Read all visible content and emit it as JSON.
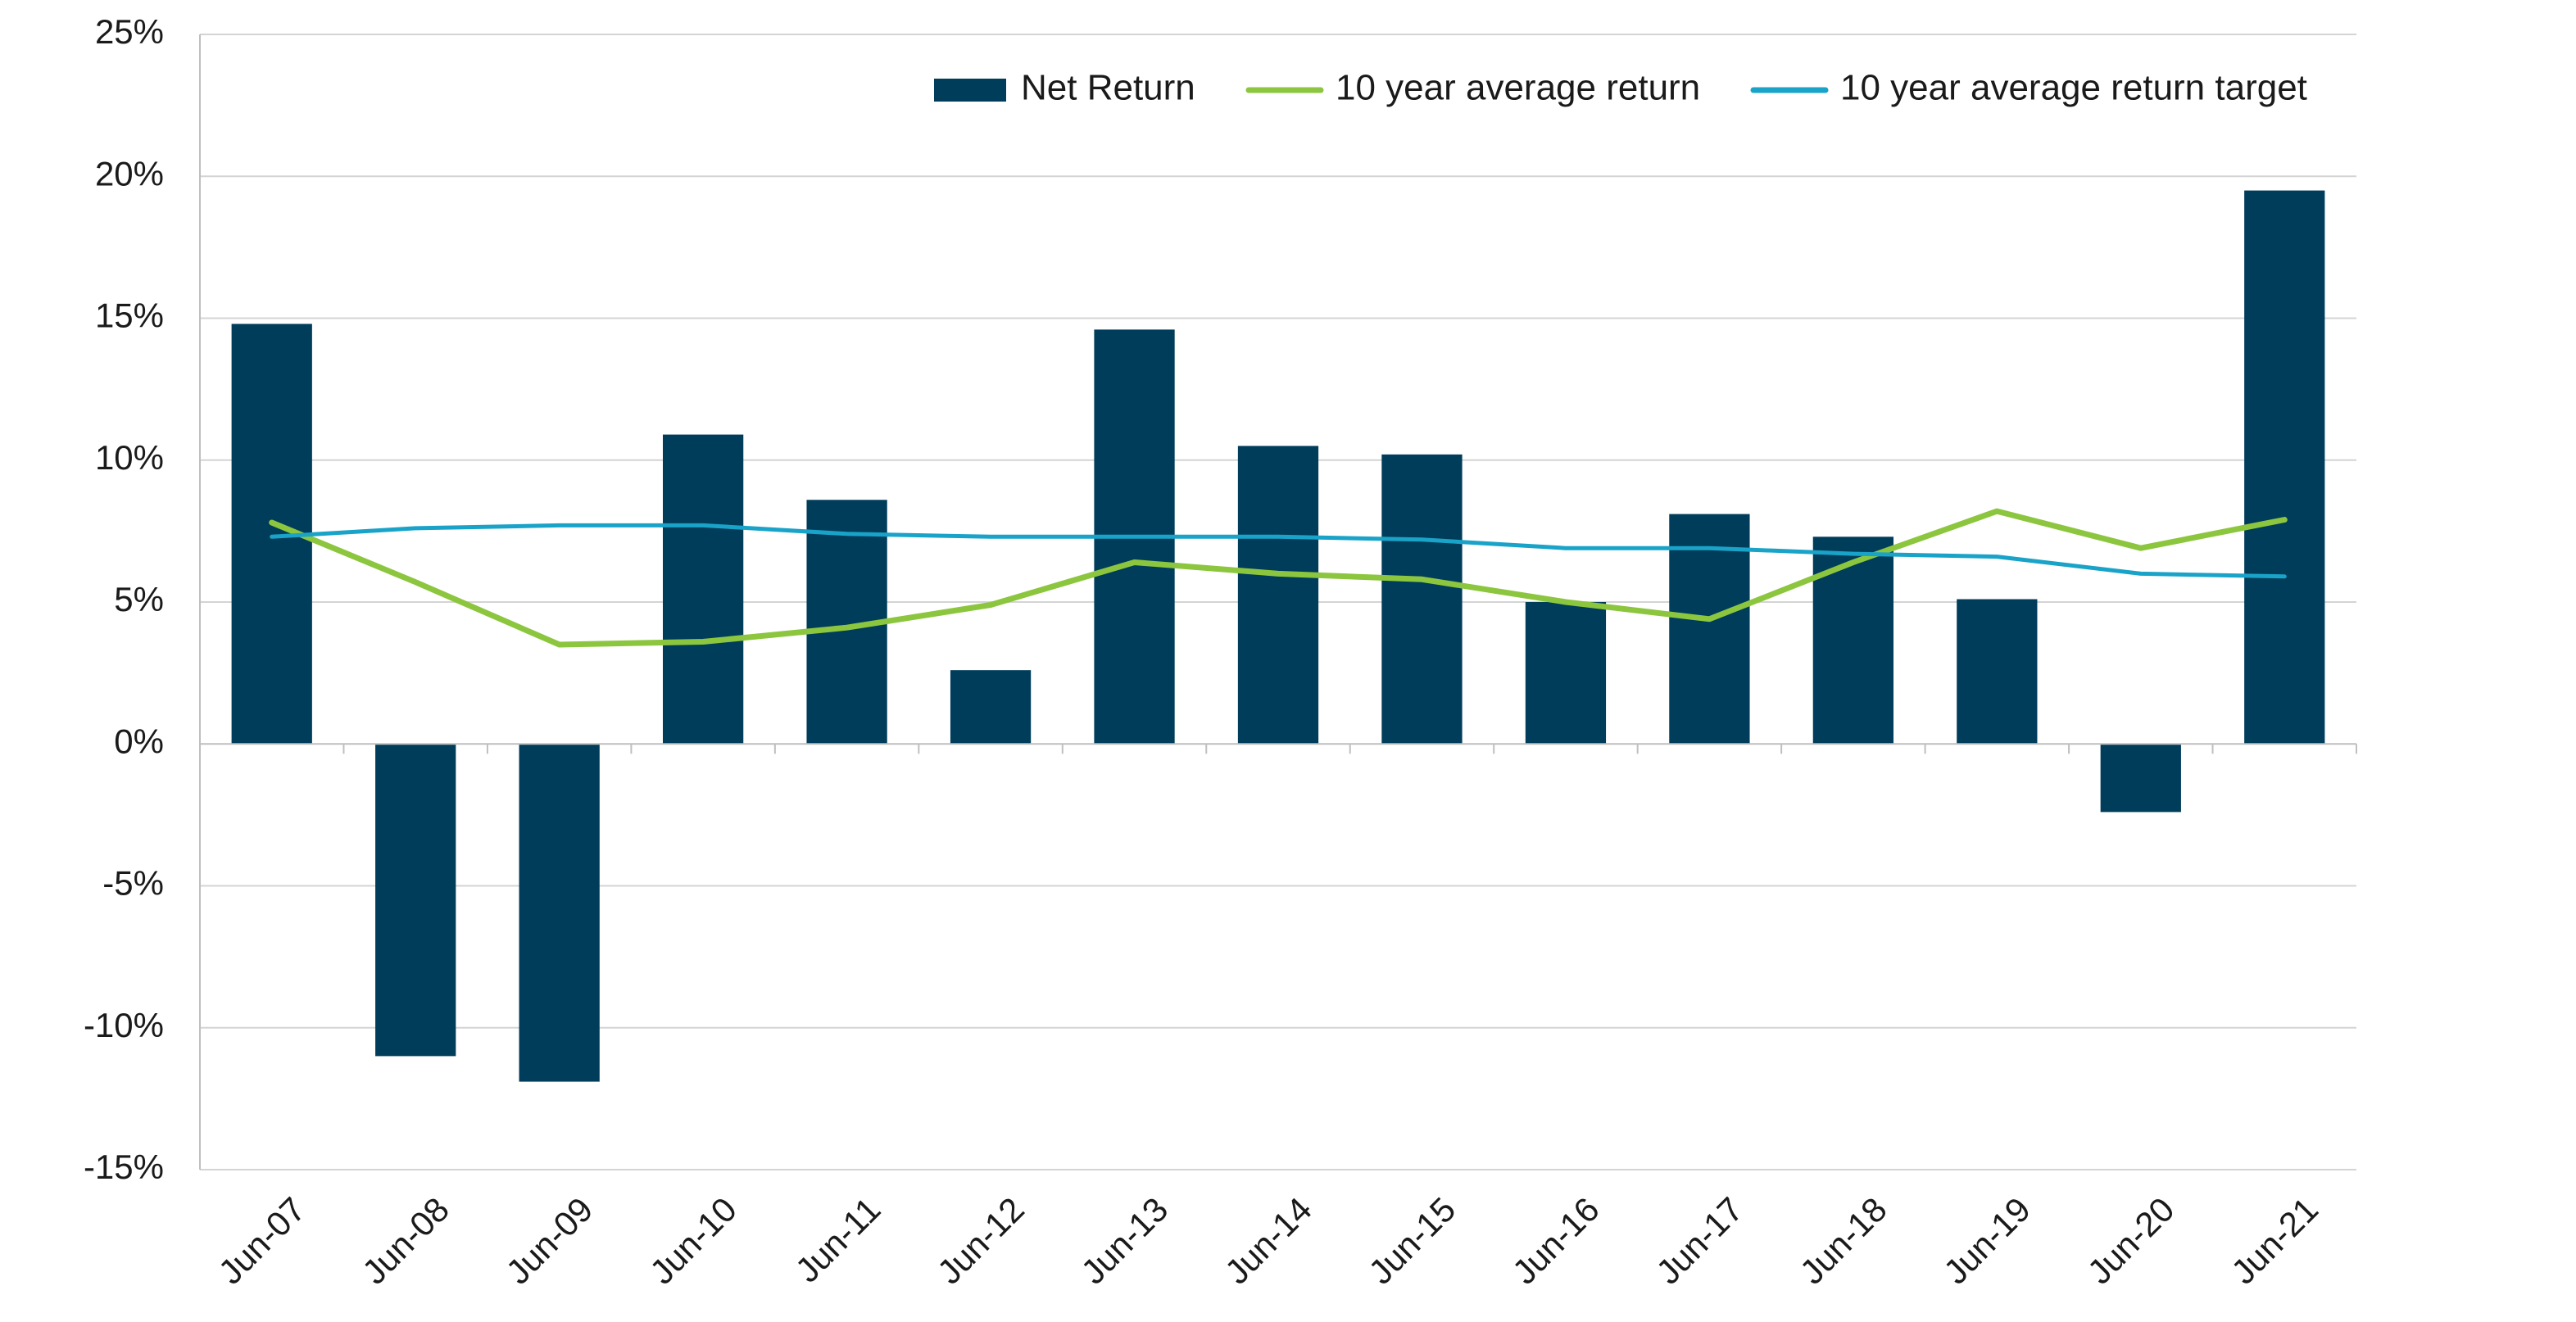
{
  "chart_data": {
    "type": "bar",
    "title": "",
    "xlabel": "",
    "ylabel": "",
    "categories": [
      "Jun-07",
      "Jun-08",
      "Jun-09",
      "Jun-10",
      "Jun-11",
      "Jun-12",
      "Jun-13",
      "Jun-14",
      "Jun-15",
      "Jun-16",
      "Jun-17",
      "Jun-18",
      "Jun-19",
      "Jun-20",
      "Jun-21"
    ],
    "ylim": [
      -15,
      25
    ],
    "y_ticks": [
      25,
      20,
      15,
      10,
      5,
      0,
      -5,
      -10,
      -15
    ],
    "y_tick_labels": [
      "25%",
      "20%",
      "15%",
      "10%",
      "5%",
      "0%",
      "-5%",
      "-10%",
      "-15%"
    ],
    "grid": true,
    "legend_position": "top-right",
    "series": [
      {
        "name": "Net Return",
        "type": "bar",
        "color": "#003d5a",
        "values": [
          14.8,
          -11.0,
          -11.9,
          10.9,
          8.6,
          2.6,
          14.6,
          10.5,
          10.2,
          5.0,
          8.1,
          7.3,
          5.1,
          -2.4,
          19.5
        ]
      },
      {
        "name": "10 year average return",
        "type": "line",
        "color": "#8cc63f",
        "values": [
          7.8,
          5.7,
          3.5,
          3.6,
          4.1,
          4.9,
          6.4,
          6.0,
          5.8,
          5.0,
          4.4,
          6.4,
          8.2,
          6.9,
          7.9
        ]
      },
      {
        "name": "10 year average return target",
        "type": "line",
        "color": "#1aa3c8",
        "values": [
          7.3,
          7.6,
          7.7,
          7.7,
          7.4,
          7.3,
          7.3,
          7.3,
          7.2,
          6.9,
          6.9,
          6.7,
          6.6,
          6.0,
          5.9
        ]
      }
    ]
  }
}
